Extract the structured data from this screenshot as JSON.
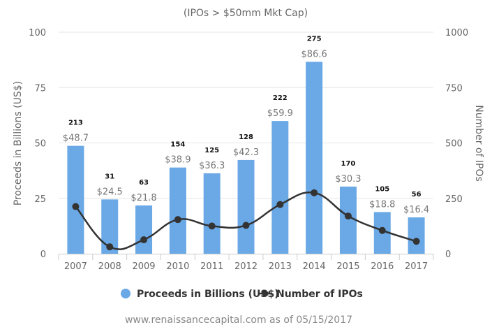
{
  "chart_data": {
    "type": "bar",
    "title": "",
    "subtitle": "(IPOs > $50mm Mkt Cap)",
    "categories": [
      "2007",
      "2008",
      "2009",
      "2010",
      "2011",
      "2012",
      "2013",
      "2014",
      "2015",
      "2016",
      "2017"
    ],
    "series": [
      {
        "name": "Proceeds in Billions (US$)",
        "type": "bar",
        "axis": "left",
        "color": "#6aa9e6",
        "values": [
          48.7,
          24.5,
          21.8,
          38.9,
          36.3,
          42.3,
          59.9,
          86.6,
          30.3,
          18.8,
          16.4
        ],
        "data_labels": [
          "$48.7",
          "$24.5",
          "$21.8",
          "$38.9",
          "$36.3",
          "$42.3",
          "$59.9",
          "$86.6",
          "$30.3",
          "$18.8",
          "$16.4"
        ]
      },
      {
        "name": "Number of IPOs",
        "type": "line",
        "axis": "right",
        "color": "#333333",
        "values": [
          213,
          31,
          63,
          154,
          125,
          128,
          222,
          275,
          170,
          105,
          56
        ],
        "data_labels": [
          "213",
          "31",
          "63",
          "154",
          "125",
          "128",
          "222",
          "275",
          "170",
          "105",
          "56"
        ]
      }
    ],
    "y_left": {
      "label": "Proceeds in Billions (US$)",
      "range": [
        0,
        100
      ],
      "ticks": [
        "0",
        "25",
        "50",
        "75",
        "100"
      ]
    },
    "y_right": {
      "label": "Number of IPOs",
      "range": [
        0,
        1000
      ],
      "ticks": [
        "0",
        "250",
        "500",
        "750",
        "1000"
      ]
    },
    "grid": true,
    "legend_position": "bottom-center",
    "credit": "www.renaissancecapital.com as of 05/15/2017"
  }
}
